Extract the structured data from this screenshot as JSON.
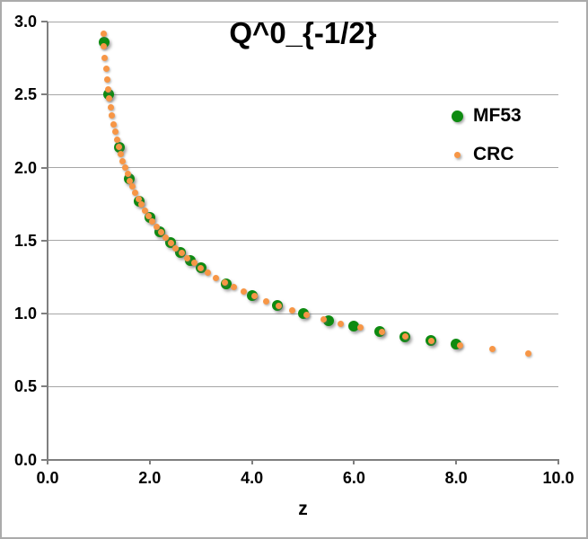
{
  "chart_data": {
    "type": "scatter",
    "title": "Q^0_{-1/2}",
    "xlabel": "z",
    "ylabel": "",
    "xlim": [
      0,
      10
    ],
    "ylim": [
      0,
      3
    ],
    "x_ticks": [
      "0.0",
      "2.0",
      "4.0",
      "6.0",
      "8.0",
      "10.0"
    ],
    "y_ticks": [
      "0.0",
      "0.5",
      "1.0",
      "1.5",
      "2.0",
      "2.5",
      "3.0"
    ],
    "grid": "horizontal",
    "legend_position": "inside-right",
    "colors": {
      "mf53_green": "#0E8B11",
      "crc_orange": "#F79646",
      "gridline": "#A6A6A6",
      "axis": "#7F7F7F",
      "text": "#000000",
      "border": "#ABABAB"
    },
    "legend_marker_sizes": [
      13,
      7
    ],
    "series": [
      {
        "name": "MF53",
        "marker": "circle",
        "marker_size": 12,
        "color": "#0E8B11",
        "points": [
          [
            1.1,
            2.861
          ],
          [
            1.2,
            2.501
          ],
          [
            1.4,
            2.137
          ],
          [
            1.6,
            1.923
          ],
          [
            1.8,
            1.772
          ],
          [
            2.0,
            1.657
          ],
          [
            2.2,
            1.563
          ],
          [
            2.4,
            1.486
          ],
          [
            2.6,
            1.419
          ],
          [
            2.8,
            1.362
          ],
          [
            3.0,
            1.311
          ],
          [
            3.5,
            1.206
          ],
          [
            4.0,
            1.124
          ],
          [
            4.5,
            1.057
          ],
          [
            5.0,
            1.001
          ],
          [
            5.5,
            0.953
          ],
          [
            6.0,
            0.912
          ],
          [
            6.5,
            0.875
          ],
          [
            7.0,
            0.843
          ],
          [
            7.5,
            0.814
          ],
          [
            8.0,
            0.788
          ]
        ]
      },
      {
        "name": "CRC",
        "marker": "circle",
        "marker_size": 7,
        "color": "#F79646",
        "points": [
          [
            1.09,
            2.914
          ],
          [
            1.107,
            2.828
          ],
          [
            1.124,
            2.749
          ],
          [
            1.144,
            2.674
          ],
          [
            1.164,
            2.603
          ],
          [
            1.187,
            2.536
          ],
          [
            1.211,
            2.473
          ],
          [
            1.237,
            2.412
          ],
          [
            1.265,
            2.354
          ],
          [
            1.295,
            2.298
          ],
          [
            1.327,
            2.244
          ],
          [
            1.36,
            2.192
          ],
          [
            1.396,
            2.141
          ],
          [
            1.435,
            2.092
          ],
          [
            1.476,
            2.045
          ],
          [
            1.519,
            1.999
          ],
          [
            1.565,
            1.954
          ],
          [
            1.615,
            1.91
          ],
          [
            1.667,
            1.868
          ],
          [
            1.722,
            1.826
          ],
          [
            1.781,
            1.785
          ],
          [
            1.843,
            1.745
          ],
          [
            1.91,
            1.705
          ],
          [
            1.981,
            1.667
          ],
          [
            2.056,
            1.629
          ],
          [
            2.136,
            1.592
          ],
          [
            2.221,
            1.555
          ],
          [
            2.312,
            1.518
          ],
          [
            2.408,
            1.483
          ],
          [
            2.511,
            1.448
          ],
          [
            2.622,
            1.413
          ],
          [
            2.739,
            1.378
          ],
          [
            2.865,
            1.345
          ],
          [
            3.0,
            1.311
          ],
          [
            3.145,
            1.278
          ],
          [
            3.3,
            1.245
          ],
          [
            3.467,
            1.213
          ],
          [
            3.647,
            1.18
          ],
          [
            3.841,
            1.149
          ],
          [
            4.05,
            1.117
          ],
          [
            4.277,
            1.086
          ],
          [
            4.522,
            1.054
          ],
          [
            4.789,
            1.024
          ],
          [
            5.079,
            0.993
          ],
          [
            5.396,
            0.963
          ],
          [
            5.742,
            0.932
          ],
          [
            6.122,
            0.902
          ],
          [
            6.54,
            0.873
          ],
          [
            7.0,
            0.843
          ],
          [
            7.509,
            0.813
          ],
          [
            8.074,
            0.784
          ],
          [
            8.704,
            0.755
          ],
          [
            9.406,
            0.726
          ]
        ]
      }
    ]
  }
}
